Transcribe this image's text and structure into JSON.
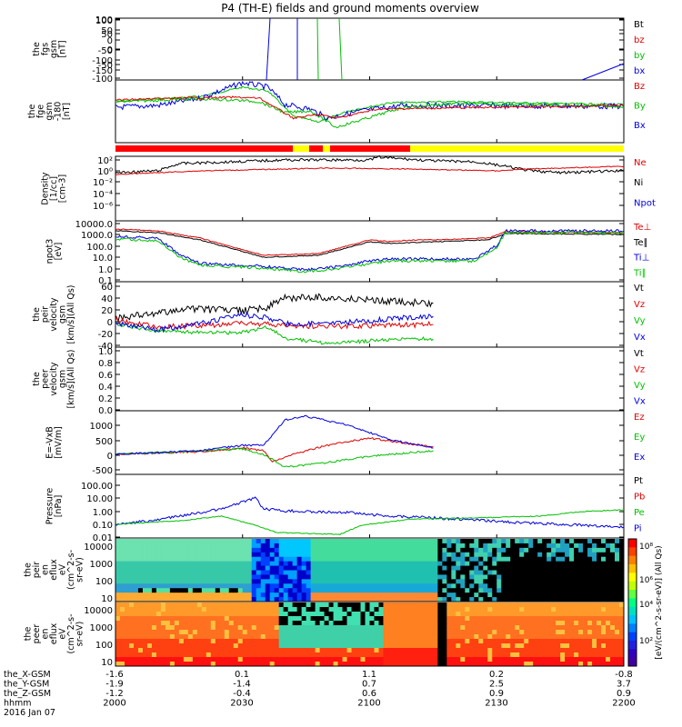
{
  "title": "P4 (TH-E) fields and ground moments overview",
  "panels": [
    {
      "id": "fgs",
      "ylabel": [
        "the",
        "fgs",
        "gsm",
        "[nT]"
      ],
      "yticks": [
        "100",
        "50",
        "0",
        "-50",
        "-100"
      ],
      "legend": [
        {
          "text": "Bt",
          "color": "#000000"
        },
        {
          "text": "bz",
          "color": "#e00000"
        },
        {
          "text": "by",
          "color": "#00c000"
        },
        {
          "text": "bx",
          "color": "#0000e0"
        }
      ]
    },
    {
      "id": "fge",
      "ylabel": [
        "the",
        "fge",
        "gsm",
        "-180",
        "[nT]"
      ],
      "yticks": [
        "100",
        "50",
        "0",
        "-50",
        "-100",
        "-150"
      ],
      "legend": [
        {
          "text": "Bz",
          "color": "#e00000"
        },
        {
          "text": "By",
          "color": "#00c000"
        },
        {
          "text": "Bx",
          "color": "#0000e0"
        }
      ]
    },
    {
      "id": "density",
      "ylabel": [
        "Density",
        "[1/cc]",
        "[cm-3]"
      ],
      "yticks": [
        "10²",
        "10⁰",
        "10⁻²",
        "10⁻⁴",
        "10⁻⁶"
      ],
      "legend": [
        {
          "text": "Ne",
          "color": "#e00000"
        },
        {
          "text": "Ni",
          "color": "#000000"
        },
        {
          "text": "Npot",
          "color": "#0000e0"
        }
      ]
    },
    {
      "id": "temp",
      "ylabel": [
        "npot3",
        "[eV]"
      ],
      "yticks": [
        "10000.0",
        "1000.0",
        "100.0",
        "10.0",
        "1.0",
        "0.1"
      ],
      "legend": [
        {
          "text": "Te⊥",
          "color": "#e00000"
        },
        {
          "text": "Te∥",
          "color": "#000000"
        },
        {
          "text": "Ti⊥",
          "color": "#0000e0"
        },
        {
          "text": "Ti∥",
          "color": "#00c000"
        }
      ]
    },
    {
      "id": "peirv",
      "ylabel": [
        "the",
        "peir",
        "velocity",
        "gsm",
        "[km/s](All Qs)"
      ],
      "yticks": [
        "60",
        "40",
        "20",
        "0",
        "-20",
        "-40"
      ],
      "legend": [
        {
          "text": "Vt",
          "color": "#000000"
        },
        {
          "text": "Vz",
          "color": "#e00000"
        },
        {
          "text": "Vy",
          "color": "#00c000"
        },
        {
          "text": "Vx",
          "color": "#0000e0"
        }
      ]
    },
    {
      "id": "peerv",
      "ylabel": [
        "the",
        "peer",
        "velocity",
        "gsm",
        "[km/s](All Qs)"
      ],
      "yticks": [
        "1.0",
        "0.8",
        "0.6",
        "0.4",
        "0.2",
        "0.0"
      ],
      "legend": [
        {
          "text": "Vt",
          "color": "#000000"
        },
        {
          "text": "Vz",
          "color": "#e00000"
        },
        {
          "text": "Vy",
          "color": "#00c000"
        },
        {
          "text": "Vx",
          "color": "#0000e0"
        }
      ]
    },
    {
      "id": "efield",
      "ylabel": [
        "E=-VxB",
        "[mV/m]"
      ],
      "yticks": [
        "1000",
        "500",
        "0",
        "-500"
      ],
      "legend": [
        {
          "text": "Ez",
          "color": "#e00000"
        },
        {
          "text": "Ey",
          "color": "#00c000"
        },
        {
          "text": "Ex",
          "color": "#0000e0"
        }
      ]
    },
    {
      "id": "pressure",
      "ylabel": [
        "Pressure",
        "[nPa]"
      ],
      "yticks": [
        "100.00",
        "10.00",
        "1.00",
        "0.10",
        "0.01"
      ],
      "legend": [
        {
          "text": "Pt",
          "color": "#000000"
        },
        {
          "text": "Pb",
          "color": "#e00000"
        },
        {
          "text": "Pe",
          "color": "#00c000"
        },
        {
          "text": "Pi",
          "color": "#0000e0"
        }
      ]
    },
    {
      "id": "peirspec",
      "ylabel": [
        "the",
        "peir",
        "en",
        "eflux",
        "eV",
        "(cm^2-s-",
        "sr-eV)"
      ],
      "yticks": [
        "10000",
        "1000",
        "100",
        "10"
      ],
      "legend": []
    },
    {
      "id": "peerspec",
      "ylabel": [
        "the",
        "peer",
        "en",
        "eflux",
        "eV",
        "(cm^2-s-",
        "sr-eV)"
      ],
      "yticks": [
        "10000",
        "1000",
        "100",
        "10"
      ],
      "legend": []
    }
  ],
  "colorbar": {
    "label": "[eV/(cm^2-s-sr-eV)] (All Qs)",
    "ticks": [
      "10⁸",
      "10⁶",
      "10⁴",
      "10²"
    ]
  },
  "xaxis": {
    "rowlabels": [
      "the_X-GSM",
      "the_Y-GSM",
      "the_Z-GSM",
      "hhmm",
      "2016 Jan 07"
    ],
    "columns": [
      {
        "x": "-1.6",
        "y": "-1.9",
        "z": "-1.2",
        "t": "2000"
      },
      {
        "x": "0.1",
        "y": "-1.4",
        "z": "-0.4",
        "t": "2030"
      },
      {
        "x": "1.1",
        "y": "0.7",
        "z": "0.6",
        "t": "2100"
      },
      {
        "x": "0.2",
        "y": "2.5",
        "z": "0.9",
        "t": "2130"
      },
      {
        "x": "-0.8",
        "y": "3.7",
        "z": "0.9",
        "t": "2200"
      }
    ]
  },
  "chart_data": [
    {
      "type": "line",
      "ylabel": "the fgs gsm [nT]",
      "ylim": [
        -100,
        100
      ],
      "x": [
        2000,
        2030,
        2100,
        2130,
        2200
      ],
      "series": [
        {
          "name": "Bt",
          "values": [
            null,
            null,
            null,
            null,
            null
          ]
        },
        {
          "name": "bz",
          "values": [
            null,
            null,
            null,
            null,
            null
          ]
        },
        {
          "name": "by",
          "values": [
            null,
            100,
            100,
            null,
            null
          ]
        },
        {
          "name": "bx",
          "values": [
            null,
            100,
            null,
            null,
            -50
          ]
        }
      ]
    },
    {
      "type": "line",
      "ylabel": "the fge gsm -180 [nT]",
      "ylim": [
        -180,
        110
      ],
      "x": [
        2000,
        2015,
        2025,
        2040,
        2050,
        2100,
        2115,
        2130,
        2200
      ],
      "series": [
        {
          "name": "Bz",
          "values": [
            20,
            22,
            30,
            10,
            -30,
            -10,
            10,
            15,
            0
          ]
        },
        {
          "name": "By",
          "values": [
            5,
            10,
            -15,
            -20,
            -80,
            -20,
            10,
            20,
            10
          ]
        },
        {
          "name": "Bx",
          "values": [
            0,
            30,
            80,
            20,
            50,
            60,
            40,
            15,
            -5
          ]
        }
      ]
    },
    {
      "type": "line",
      "ylabel": "Density [1/cc] [cm-3]",
      "x": [
        2000,
        2010,
        2020,
        2100,
        2130,
        2200
      ],
      "series": [
        {
          "name": "Ne",
          "values": [
            0.1,
            0.2,
            0.5,
            0.5,
            0.3,
            0.5
          ]
        },
        {
          "name": "Ni",
          "values": [
            0.1,
            2,
            4,
            6,
            0.05,
            0.05
          ]
        },
        {
          "name": "Npot",
          "values": [
            null,
            null,
            null,
            null,
            null,
            null
          ]
        }
      ]
    },
    {
      "type": "line",
      "ylabel": "npot3 [eV]",
      "x": [
        2000,
        2010,
        2020,
        2035,
        2050,
        2100,
        2110,
        2130,
        2140,
        2200
      ],
      "series": [
        {
          "name": "Te⊥",
          "values": [
            2000,
            1500,
            1000,
            30,
            40,
            300,
            300,
            300,
            1200,
            1000
          ]
        },
        {
          "name": "Te∥",
          "values": [
            1500,
            1200,
            800,
            25,
            30,
            250,
            280,
            300,
            1000,
            800
          ]
        },
        {
          "name": "Ti⊥",
          "values": [
            1200,
            800,
            10,
            5,
            1,
            20,
            8,
            10,
            2000,
            2000
          ]
        },
        {
          "name": "Ti∥",
          "values": [
            800,
            500,
            7,
            3,
            1,
            15,
            7,
            8,
            1500,
            1500
          ]
        }
      ]
    },
    {
      "type": "line",
      "ylabel": "the peir velocity gsm [km/s](All Qs)",
      "ylim": [
        -45,
        65
      ],
      "x": [
        2000,
        2010,
        2030,
        2040,
        2050,
        2100,
        2105
      ],
      "series": [
        {
          "name": "Vt",
          "values": [
            10,
            20,
            20,
            55,
            50,
            40,
            38
          ]
        },
        {
          "name": "Vz",
          "values": [
            0,
            10,
            0,
            5,
            -5,
            -5,
            -5
          ]
        },
        {
          "name": "Vy",
          "values": [
            -10,
            -5,
            -10,
            -35,
            -40,
            -35,
            -30
          ]
        },
        {
          "name": "Vx",
          "values": [
            0,
            5,
            20,
            0,
            10,
            15,
            15
          ]
        }
      ]
    },
    {
      "type": "line",
      "ylabel": "the peer velocity gsm [km/s](All Qs)",
      "ylim": [
        0,
        1
      ],
      "x": [],
      "series": [
        {
          "name": "Vt",
          "values": []
        },
        {
          "name": "Vz",
          "values": []
        },
        {
          "name": "Vy",
          "values": []
        },
        {
          "name": "Vx",
          "values": []
        }
      ]
    },
    {
      "type": "line",
      "ylabel": "E=-VxB [mV/m]",
      "ylim": [
        -600,
        1200
      ],
      "x": [
        2000,
        2030,
        2040,
        2050,
        2100,
        2105
      ],
      "series": [
        {
          "name": "Ez",
          "values": [
            0,
            50,
            -300,
            200,
            350,
            300
          ]
        },
        {
          "name": "Ey",
          "values": [
            0,
            20,
            -400,
            -200,
            0,
            50
          ]
        },
        {
          "name": "Ex",
          "values": [
            0,
            80,
            1000,
            1000,
            400,
            300
          ]
        }
      ]
    },
    {
      "type": "line",
      "ylabel": "Pressure [nPa]",
      "x": [
        2000,
        2030,
        2040,
        2100,
        2130,
        2200
      ],
      "series": [
        {
          "name": "Pt",
          "values": [
            null,
            null,
            null,
            null,
            null,
            null
          ]
        },
        {
          "name": "Pb",
          "values": [
            null,
            null,
            null,
            null,
            null,
            null
          ]
        },
        {
          "name": "Pe",
          "values": [
            0.03,
            0.1,
            0.02,
            0.01,
            0.03,
            0.3
          ]
        },
        {
          "name": "Pi",
          "values": [
            0.03,
            0.5,
            2,
            0.1,
            0.03,
            0.03
          ]
        }
      ]
    },
    {
      "type": "heatmap",
      "ylabel": "the peir en eflux eV (cm^2-s-sr-eV)",
      "yscale": "log",
      "ylim": [
        5,
        30000
      ],
      "x": [
        2000,
        2200
      ]
    },
    {
      "type": "heatmap",
      "ylabel": "the peer en eflux eV (cm^2-s-sr-eV)",
      "yscale": "log",
      "ylim": [
        5,
        30000
      ],
      "x": [
        2000,
        2200
      ]
    }
  ]
}
